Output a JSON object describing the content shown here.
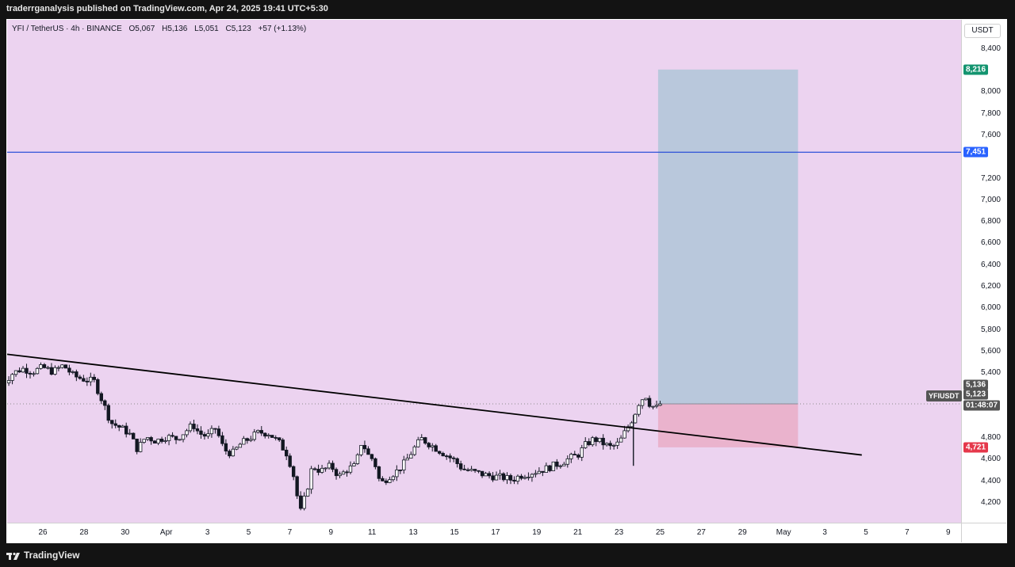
{
  "publisher_line": "traderrganalysis published on TradingView.com, Apr 24, 2025 19:41 UTC+5:30",
  "header": {
    "symbol": "YFI / TetherUS · 4h · BINANCE",
    "open": "O5,067",
    "high": "H5,136",
    "low": "L5,051",
    "close": "C5,123",
    "change": "+57 (+1.13%)"
  },
  "currency_button": "USDT",
  "footer_brand": "TradingView",
  "badges": {
    "target": "8,216",
    "resistance": "7,451",
    "high_now": "5,136",
    "last": "5,123",
    "countdown": "01:48:07",
    "stop": "4,721",
    "symbol": "YFIUSDT"
  },
  "colors": {
    "background": "#ecd3f0",
    "target_zone": "#b9c8dc",
    "stop_zone": "#eab3cd",
    "resistance_line": "#2b4fd8",
    "trendline": "#000000",
    "candle": "#131722",
    "target_badge": "#13946f",
    "resistance_badge": "#2962ff",
    "stop_badge": "#e5384b"
  },
  "chart_data": {
    "type": "candlestick",
    "price_axis": {
      "ylim": [
        4050,
        8500
      ],
      "ticks": [
        "8,400",
        "8,000",
        "7,800",
        "7,600",
        "7,200",
        "7,000",
        "6,800",
        "6,600",
        "6,400",
        "6,200",
        "6,000",
        "5,800",
        "5,600",
        "5,400",
        "4,800",
        "4,600",
        "4,400",
        "4,200"
      ]
    },
    "time_axis": {
      "ticks": [
        "26",
        "28",
        "30",
        "Apr",
        "3",
        "5",
        "7",
        "9",
        "11",
        "13",
        "15",
        "17",
        "19",
        "21",
        "23",
        "25",
        "27",
        "29",
        "May",
        "3",
        "5",
        "7",
        "9"
      ]
    },
    "price_tick_values": [
      8400,
      8000,
      7800,
      7600,
      7200,
      7000,
      6800,
      6600,
      6400,
      6200,
      6000,
      5800,
      5600,
      5400,
      4800,
      4600,
      4400,
      4200
    ],
    "time_tick_days": [
      26,
      28,
      30,
      32,
      34,
      36,
      38,
      40,
      42,
      44,
      46,
      48,
      50,
      52,
      54,
      56,
      58,
      60,
      62,
      64,
      66,
      68,
      70
    ],
    "time_tick_note": "day index from Mar 0, 2025",
    "resistance_level": 7451,
    "position": {
      "entry": 5123,
      "target": 8216,
      "stop": 4721,
      "start_day": 55.9,
      "end_day": 62.7
    },
    "trendline": {
      "p1": {
        "day": 23.9,
        "price": 5590
      },
      "p2": {
        "day": 65.8,
        "price": 4650
      }
    },
    "price_path": [
      [
        24.0,
        5300
      ],
      [
        24.5,
        5400
      ],
      [
        25.0,
        5450
      ],
      [
        25.5,
        5420
      ],
      [
        26.0,
        5460
      ],
      [
        26.5,
        5420
      ],
      [
        27.0,
        5480
      ],
      [
        27.5,
        5380
      ],
      [
        28.0,
        5350
      ],
      [
        28.5,
        5330
      ],
      [
        29.0,
        5100
      ],
      [
        29.3,
        4950
      ],
      [
        29.8,
        4900
      ],
      [
        30.2,
        4850
      ],
      [
        30.6,
        4700
      ],
      [
        31.0,
        4820
      ],
      [
        31.5,
        4780
      ],
      [
        32.0,
        4820
      ],
      [
        32.5,
        4800
      ],
      [
        33.0,
        4880
      ],
      [
        33.3,
        4930
      ],
      [
        33.6,
        4850
      ],
      [
        34.0,
        4820
      ],
      [
        34.4,
        4900
      ],
      [
        34.8,
        4700
      ],
      [
        35.2,
        4660
      ],
      [
        35.6,
        4750
      ],
      [
        36.0,
        4800
      ],
      [
        36.5,
        4860
      ],
      [
        37.0,
        4850
      ],
      [
        37.5,
        4760
      ],
      [
        37.9,
        4650
      ],
      [
        38.2,
        4450
      ],
      [
        38.5,
        4110
      ],
      [
        38.8,
        4300
      ],
      [
        39.1,
        4550
      ],
      [
        39.5,
        4500
      ],
      [
        40.0,
        4550
      ],
      [
        40.4,
        4450
      ],
      [
        40.8,
        4520
      ],
      [
        41.2,
        4550
      ],
      [
        41.5,
        4780
      ],
      [
        41.8,
        4650
      ],
      [
        42.1,
        4600
      ],
      [
        42.4,
        4380
      ],
      [
        42.8,
        4450
      ],
      [
        43.2,
        4500
      ],
      [
        43.6,
        4580
      ],
      [
        44.0,
        4700
      ],
      [
        44.4,
        4800
      ],
      [
        44.8,
        4750
      ],
      [
        45.2,
        4700
      ],
      [
        45.6,
        4650
      ],
      [
        46.0,
        4600
      ],
      [
        46.4,
        4520
      ],
      [
        46.8,
        4500
      ],
      [
        47.2,
        4480
      ],
      [
        47.6,
        4460
      ],
      [
        48.0,
        4450
      ],
      [
        48.4,
        4440
      ],
      [
        48.8,
        4420
      ],
      [
        49.2,
        4460
      ],
      [
        49.6,
        4480
      ],
      [
        50.0,
        4500
      ],
      [
        50.4,
        4520
      ],
      [
        50.8,
        4550
      ],
      [
        51.2,
        4580
      ],
      [
        51.6,
        4620
      ],
      [
        52.0,
        4650
      ],
      [
        52.4,
        4750
      ],
      [
        52.8,
        4800
      ],
      [
        53.2,
        4760
      ],
      [
        53.6,
        4720
      ],
      [
        54.0,
        4760
      ],
      [
        54.4,
        4900
      ],
      [
        54.7,
        5000
      ],
      [
        55.0,
        5150
      ],
      [
        55.3,
        5200
      ],
      [
        55.5,
        5120
      ],
      [
        55.8,
        5080
      ],
      [
        56.0,
        5123
      ]
    ],
    "candle_count": 186
  }
}
